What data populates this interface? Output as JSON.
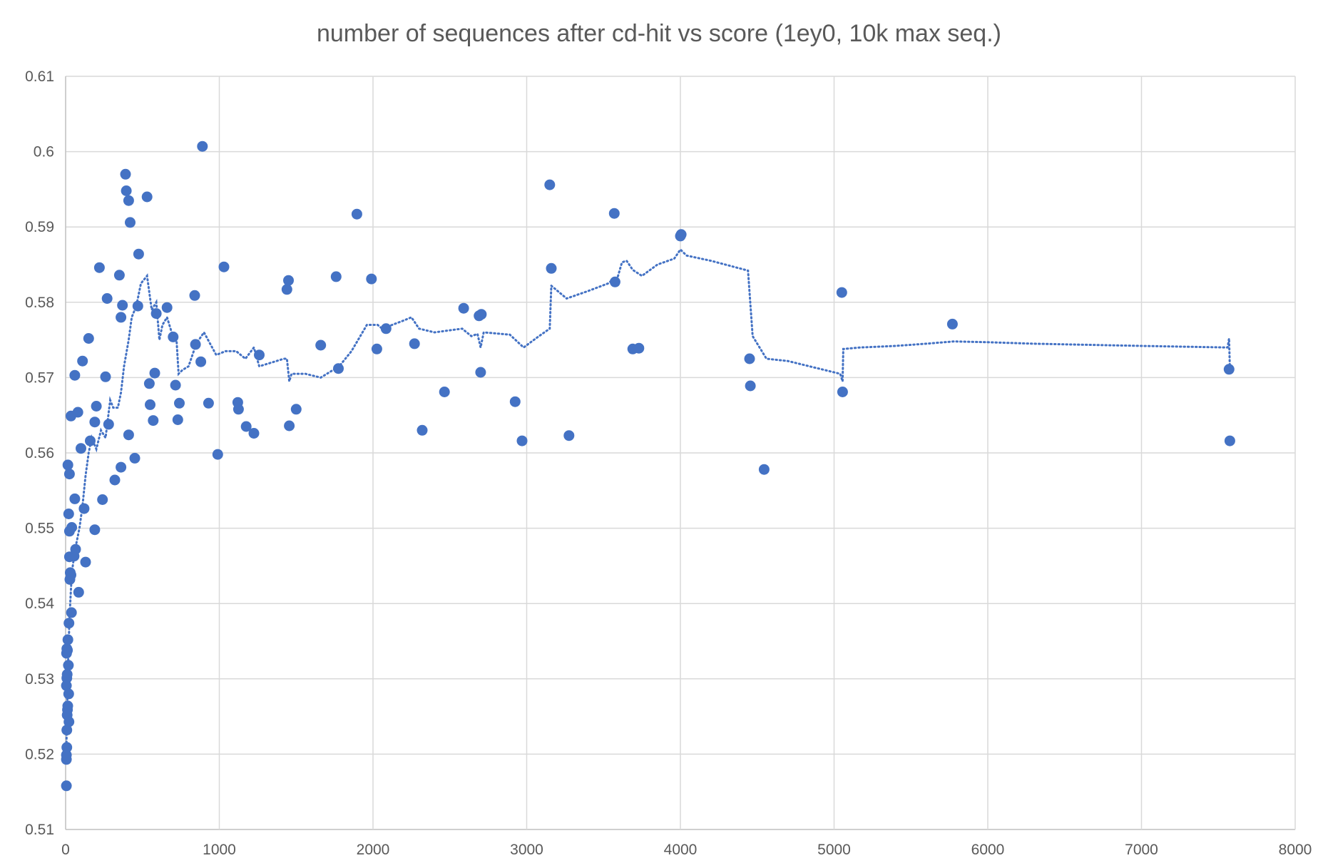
{
  "chart_data": {
    "type": "scatter",
    "title": "number of sequences after cd-hit vs score (1ey0, 10k max seq.)",
    "xlabel": "",
    "ylabel": "",
    "xlim": [
      0,
      8000
    ],
    "ylim": [
      0.51,
      0.61
    ],
    "x_ticks": [
      "0",
      "1000",
      "2000",
      "3000",
      "4000",
      "5000",
      "6000",
      "7000",
      "8000"
    ],
    "y_ticks": [
      "0.51",
      "0.52",
      "0.53",
      "0.54",
      "0.55",
      "0.56",
      "0.57",
      "0.58",
      "0.59",
      "0.6",
      "0.61"
    ],
    "grid": "on",
    "legend": "none",
    "colors": {
      "marker": "#4472c4",
      "trendline": "#4472c4",
      "grid": "#d9d9d9",
      "text": "#595959"
    },
    "series": [
      {
        "marker": "circle",
        "points": [
          [
            5,
            0.5158
          ],
          [
            5,
            0.5193
          ],
          [
            5,
            0.5199
          ],
          [
            8,
            0.5209
          ],
          [
            8,
            0.5232
          ],
          [
            10,
            0.5252
          ],
          [
            12,
            0.5259
          ],
          [
            14,
            0.5264
          ],
          [
            5,
            0.5291
          ],
          [
            8,
            0.5301
          ],
          [
            10,
            0.5306
          ],
          [
            6,
            0.5334
          ],
          [
            8,
            0.534
          ],
          [
            12,
            0.5338
          ],
          [
            18,
            0.5318
          ],
          [
            20,
            0.528
          ],
          [
            22,
            0.5243
          ],
          [
            15,
            0.5352
          ],
          [
            22,
            0.5374
          ],
          [
            38,
            0.5388
          ],
          [
            28,
            0.5432
          ],
          [
            30,
            0.5441
          ],
          [
            35,
            0.5438
          ],
          [
            25,
            0.5462
          ],
          [
            55,
            0.5463
          ],
          [
            65,
            0.5472
          ],
          [
            85,
            0.5415
          ],
          [
            130,
            0.5455
          ],
          [
            25,
            0.5496
          ],
          [
            40,
            0.5501
          ],
          [
            20,
            0.5519
          ],
          [
            60,
            0.5539
          ],
          [
            120,
            0.5526
          ],
          [
            190,
            0.5498
          ],
          [
            240,
            0.5538
          ],
          [
            15,
            0.5584
          ],
          [
            25,
            0.5572
          ],
          [
            100,
            0.5606
          ],
          [
            160,
            0.5616
          ],
          [
            320,
            0.5564
          ],
          [
            360,
            0.5581
          ],
          [
            450,
            0.5593
          ],
          [
            35,
            0.5649
          ],
          [
            80,
            0.5654
          ],
          [
            190,
            0.5641
          ],
          [
            200,
            0.5662
          ],
          [
            280,
            0.5638
          ],
          [
            410,
            0.5624
          ],
          [
            60,
            0.5703
          ],
          [
            110,
            0.5722
          ],
          [
            150,
            0.5752
          ],
          [
            260,
            0.5701
          ],
          [
            270,
            0.5805
          ],
          [
            360,
            0.578
          ],
          [
            370,
            0.5796
          ],
          [
            350,
            0.5836
          ],
          [
            220,
            0.5846
          ],
          [
            390,
            0.597
          ],
          [
            395,
            0.5948
          ],
          [
            410,
            0.5935
          ],
          [
            420,
            0.5906
          ],
          [
            470,
            0.5795
          ],
          [
            475,
            0.5864
          ],
          [
            530,
            0.594
          ],
          [
            545,
            0.5692
          ],
          [
            550,
            0.5664
          ],
          [
            570,
            0.5643
          ],
          [
            580,
            0.5706
          ],
          [
            590,
            0.5785
          ],
          [
            660,
            0.5793
          ],
          [
            700,
            0.5754
          ],
          [
            715,
            0.569
          ],
          [
            730,
            0.5644
          ],
          [
            740,
            0.5666
          ],
          [
            840,
            0.5809
          ],
          [
            845,
            0.5744
          ],
          [
            880,
            0.5721
          ],
          [
            890,
            0.6007
          ],
          [
            930,
            0.5666
          ],
          [
            990,
            0.5598
          ],
          [
            1030,
            0.5847
          ],
          [
            1120,
            0.5667
          ],
          [
            1125,
            0.5658
          ],
          [
            1175,
            0.5635
          ],
          [
            1225,
            0.5626
          ],
          [
            1260,
            0.573
          ],
          [
            1440,
            0.5817
          ],
          [
            1450,
            0.5829
          ],
          [
            1455,
            0.5636
          ],
          [
            1500,
            0.5658
          ],
          [
            1660,
            0.5743
          ],
          [
            1760,
            0.5834
          ],
          [
            1775,
            0.5712
          ],
          [
            1895,
            0.5917
          ],
          [
            1990,
            0.5831
          ],
          [
            2025,
            0.5738
          ],
          [
            2085,
            0.5765
          ],
          [
            2270,
            0.5745
          ],
          [
            2320,
            0.563
          ],
          [
            2465,
            0.5681
          ],
          [
            2590,
            0.5792
          ],
          [
            2690,
            0.5782
          ],
          [
            2700,
            0.5707
          ],
          [
            2705,
            0.5784
          ],
          [
            2925,
            0.5668
          ],
          [
            2970,
            0.5616
          ],
          [
            3150,
            0.5956
          ],
          [
            3160,
            0.5845
          ],
          [
            3275,
            0.5623
          ],
          [
            3570,
            0.5918
          ],
          [
            3575,
            0.5827
          ],
          [
            3690,
            0.5738
          ],
          [
            3730,
            0.5739
          ],
          [
            4000,
            0.5888
          ],
          [
            4005,
            0.589
          ],
          [
            4450,
            0.5725
          ],
          [
            4455,
            0.5689
          ],
          [
            4545,
            0.5578
          ],
          [
            5050,
            0.5813
          ],
          [
            5055,
            0.5681
          ],
          [
            5770,
            0.5771
          ],
          [
            7570,
            0.5711
          ],
          [
            7575,
            0.5616
          ]
        ]
      }
    ],
    "trendline": {
      "style": "dotted",
      "points": [
        [
          5,
          0.521
        ],
        [
          15,
          0.531
        ],
        [
          25,
          0.538
        ],
        [
          40,
          0.544
        ],
        [
          60,
          0.547
        ],
        [
          90,
          0.55
        ],
        [
          110,
          0.553
        ],
        [
          130,
          0.557
        ],
        [
          150,
          0.56
        ],
        [
          170,
          0.562
        ],
        [
          200,
          0.5605
        ],
        [
          230,
          0.563
        ],
        [
          260,
          0.562
        ],
        [
          290,
          0.567
        ],
        [
          310,
          0.566
        ],
        [
          340,
          0.566
        ],
        [
          360,
          0.568
        ],
        [
          380,
          0.5715
        ],
        [
          410,
          0.575
        ],
        [
          430,
          0.578
        ],
        [
          460,
          0.5795
        ],
        [
          490,
          0.5825
        ],
        [
          510,
          0.583
        ],
        [
          530,
          0.5835
        ],
        [
          560,
          0.579
        ],
        [
          590,
          0.58
        ],
        [
          610,
          0.575
        ],
        [
          630,
          0.577
        ],
        [
          660,
          0.578
        ],
        [
          690,
          0.576
        ],
        [
          720,
          0.5755
        ],
        [
          735,
          0.5705
        ],
        [
          760,
          0.571
        ],
        [
          800,
          0.5715
        ],
        [
          850,
          0.5745
        ],
        [
          900,
          0.576
        ],
        [
          940,
          0.5745
        ],
        [
          980,
          0.573
        ],
        [
          1040,
          0.5735
        ],
        [
          1110,
          0.5735
        ],
        [
          1170,
          0.5725
        ],
        [
          1225,
          0.574
        ],
        [
          1260,
          0.5715
        ],
        [
          1340,
          0.572
        ],
        [
          1420,
          0.5725
        ],
        [
          1440,
          0.5725
        ],
        [
          1455,
          0.5695
        ],
        [
          1470,
          0.5705
        ],
        [
          1560,
          0.5705
        ],
        [
          1660,
          0.57
        ],
        [
          1740,
          0.571
        ],
        [
          1780,
          0.5715
        ],
        [
          1860,
          0.5735
        ],
        [
          1960,
          0.577
        ],
        [
          2030,
          0.577
        ],
        [
          2060,
          0.5765
        ],
        [
          2190,
          0.5775
        ],
        [
          2250,
          0.578
        ],
        [
          2300,
          0.5765
        ],
        [
          2400,
          0.576
        ],
        [
          2580,
          0.5765
        ],
        [
          2640,
          0.5755
        ],
        [
          2680,
          0.5758
        ],
        [
          2700,
          0.574
        ],
        [
          2720,
          0.576
        ],
        [
          2890,
          0.5757
        ],
        [
          2980,
          0.574
        ],
        [
          3080,
          0.5755
        ],
        [
          3150,
          0.5765
        ],
        [
          3160,
          0.5822
        ],
        [
          3260,
          0.5805
        ],
        [
          3400,
          0.5815
        ],
        [
          3530,
          0.5825
        ],
        [
          3560,
          0.583
        ],
        [
          3580,
          0.5825
        ],
        [
          3620,
          0.5853
        ],
        [
          3650,
          0.5855
        ],
        [
          3690,
          0.5843
        ],
        [
          3750,
          0.5835
        ],
        [
          3850,
          0.585
        ],
        [
          3960,
          0.5858
        ],
        [
          4000,
          0.587
        ],
        [
          4040,
          0.5862
        ],
        [
          4200,
          0.5855
        ],
        [
          4330,
          0.5848
        ],
        [
          4440,
          0.5842
        ],
        [
          4470,
          0.5755
        ],
        [
          4560,
          0.5725
        ],
        [
          4700,
          0.5722
        ],
        [
          4880,
          0.5713
        ],
        [
          5040,
          0.5705
        ],
        [
          5055,
          0.5695
        ],
        [
          5060,
          0.5738
        ],
        [
          5170,
          0.574
        ],
        [
          5400,
          0.5742
        ],
        [
          5600,
          0.5745
        ],
        [
          5780,
          0.5748
        ],
        [
          6000,
          0.5747
        ],
        [
          6300,
          0.5745
        ],
        [
          7000,
          0.5742
        ],
        [
          7560,
          0.574
        ],
        [
          7570,
          0.5752
        ],
        [
          7575,
          0.5713
        ]
      ]
    }
  }
}
